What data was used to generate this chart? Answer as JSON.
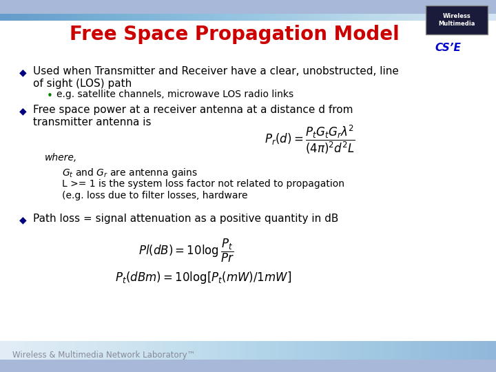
{
  "title": "Free Space Propagation Model",
  "title_color": "#CC0000",
  "bg_color": "#ffffff",
  "top_bar_color": "#B8C8E8",
  "bottom_bar_color": "#B8C8E8",
  "bullet_color": "#000080",
  "sub_bullet_color": "#008000",
  "text_color": "#000000",
  "footer_text": "Wireless & Multimedia Network Laboratory™",
  "footer_color": "#888899",
  "bullet1_line1": "Used when Transmitter and Receiver have a clear, unobstructed, line",
  "bullet1_line2": "of sight (LOS) path",
  "sub_bullet1": "e.g. satellite channels, microwave LOS radio links",
  "bullet2_line1": "Free space power at a receiver antenna at a distance d from",
  "bullet2_line2": "transmitter antenna is",
  "formula1": "$P_r(d) = \\dfrac{P_tG_tG_r\\lambda^2}{(4\\pi)^2 d^2 L}$",
  "where_text": "where,",
  "where_sub1": "$G_t$ and $G_r$ are antenna gains",
  "where_sub2": "L >= 1 is the system loss factor not related to propagation",
  "where_sub3": "(e.g. loss due to filter losses, hardware",
  "bullet3": "Path loss = signal attenuation as a positive quantity in dB",
  "formula2": "$Pl(dB) = 10\\log\\dfrac{P_t}{Pr}$",
  "formula3": "$P_t(dBm) = 10\\log[P_t(mW)/1mW]$",
  "title_fontsize": 20,
  "body_fontsize": 11,
  "sub_fontsize": 10,
  "formula_fontsize": 11
}
